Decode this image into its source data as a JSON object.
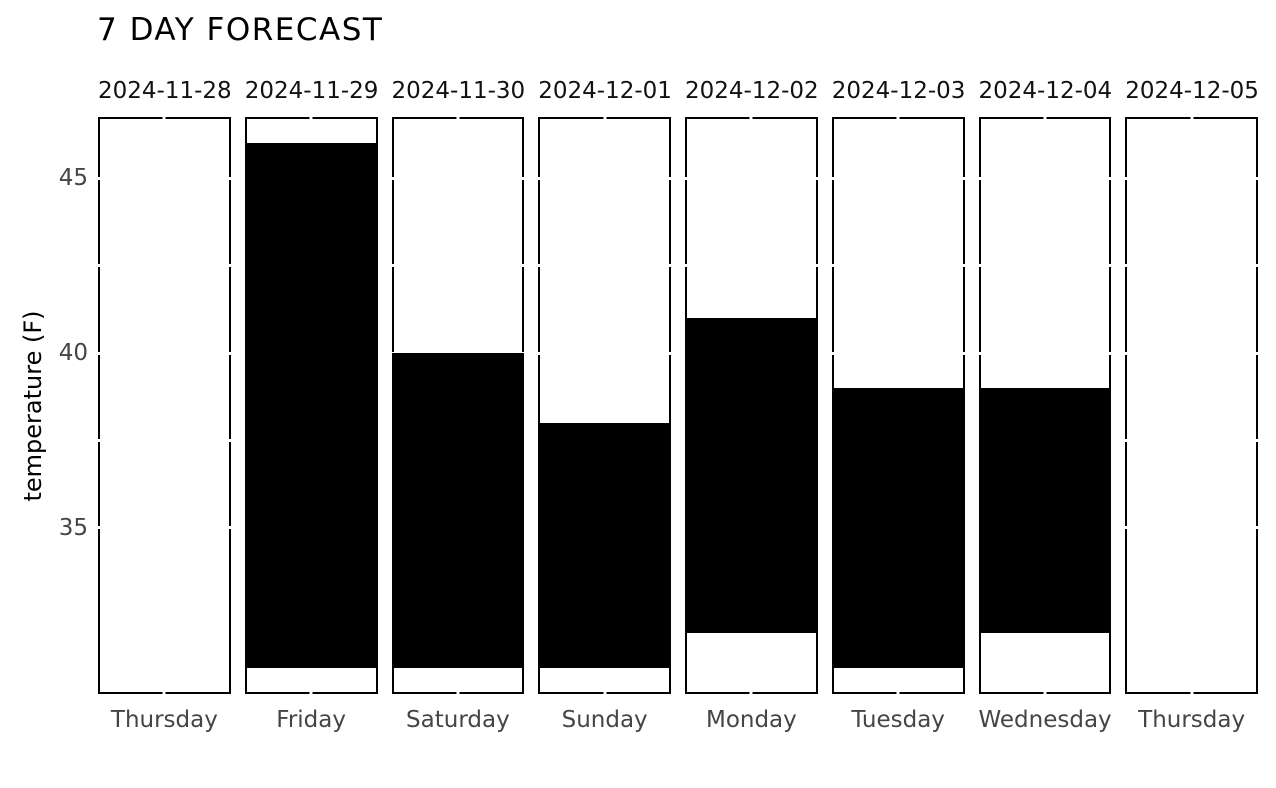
{
  "chart_data": {
    "type": "bar",
    "variant": "faceted-range-bars",
    "title": "7 DAY FORECAST",
    "ylabel": "temperature (F)",
    "y_domain": [
      30.25,
      46.75
    ],
    "y_ticks": [
      45,
      40,
      35
    ],
    "y_tick_labels": [
      "45",
      "40",
      "35"
    ],
    "y_minor_ticks": [
      42.5,
      37.5
    ],
    "grid": "white-ticks-on-border",
    "legend": "none",
    "bar_color": "#000000",
    "panel_border_color": "#000000",
    "text_color_primary": "#111111",
    "text_color_secondary": "#454545",
    "panels": [
      {
        "date": "2024-11-28",
        "day": "Thursday",
        "low": null,
        "high": null
      },
      {
        "date": "2024-11-29",
        "day": "Friday",
        "low": 31,
        "high": 46
      },
      {
        "date": "2024-11-30",
        "day": "Saturday",
        "low": 31,
        "high": 40
      },
      {
        "date": "2024-12-01",
        "day": "Sunday",
        "low": 31,
        "high": 38
      },
      {
        "date": "2024-12-02",
        "day": "Monday",
        "low": 32,
        "high": 41
      },
      {
        "date": "2024-12-03",
        "day": "Tuesday",
        "low": 31,
        "high": 39
      },
      {
        "date": "2024-12-04",
        "day": "Wednesday",
        "low": 32,
        "high": 39
      },
      {
        "date": "2024-12-05",
        "day": "Thursday",
        "low": null,
        "high": null
      }
    ]
  }
}
